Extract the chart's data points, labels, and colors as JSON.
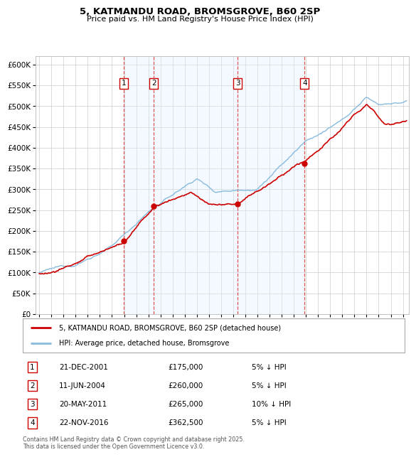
{
  "title": "5, KATMANDU ROAD, BROMSGROVE, B60 2SP",
  "subtitle": "Price paid vs. HM Land Registry's House Price Index (HPI)",
  "ytick_values": [
    0,
    50000,
    100000,
    150000,
    200000,
    250000,
    300000,
    350000,
    400000,
    450000,
    500000,
    550000,
    600000
  ],
  "xlim_start": 1994.7,
  "xlim_end": 2025.5,
  "ylim_min": 0,
  "ylim_max": 620000,
  "sales": [
    {
      "num": 1,
      "date": "21-DEC-2001",
      "price": 175000,
      "year": 2001.97,
      "pct": "5%",
      "dir": "↓"
    },
    {
      "num": 2,
      "date": "11-JUN-2004",
      "price": 260000,
      "year": 2004.44,
      "pct": "5%",
      "dir": "↓"
    },
    {
      "num": 3,
      "date": "20-MAY-2011",
      "price": 265000,
      "year": 2011.38,
      "pct": "10%",
      "dir": "↓"
    },
    {
      "num": 4,
      "date": "22-NOV-2016",
      "price": 362500,
      "year": 2016.89,
      "pct": "5%",
      "dir": "↓"
    }
  ],
  "legend_line1": "5, KATMANDU ROAD, BROMSGROVE, B60 2SP (detached house)",
  "legend_line2": "HPI: Average price, detached house, Bromsgrove",
  "footer": "Contains HM Land Registry data © Crown copyright and database right 2025.\nThis data is licensed under the Open Government Licence v3.0.",
  "line_color_red": "#cc0000",
  "line_color_blue": "#88bbdd",
  "shading_color": "#ddeeff",
  "background_color": "#ffffff",
  "grid_color": "#cccccc",
  "sale_box_color": "#cc0000",
  "dashed_line_color": "#dd4444",
  "dot_color": "#cc0000"
}
